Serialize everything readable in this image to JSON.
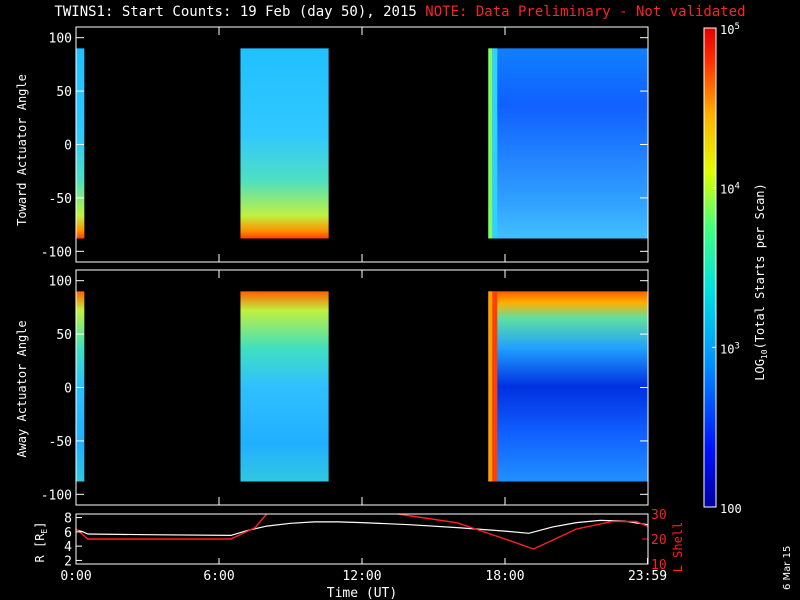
{
  "title": {
    "main": "TWINS1: Start Counts: 19 Feb (day  50), 2015",
    "note": "NOTE: Data Preliminary - Not validated"
  },
  "date_stamp": "6 Mar 15",
  "colors": {
    "background": "#000000",
    "axis": "#ffffff",
    "r_line": "#ffffff",
    "l_line": "#ff2020",
    "note_text": "#ff2222"
  },
  "chart_data": [
    {
      "type": "heatmap",
      "name": "toward-panel",
      "ylabel": "Toward Actuator Angle",
      "ylim": [
        -110,
        110
      ],
      "yticks": [
        -100,
        -50,
        0,
        50,
        100
      ],
      "xlim": [
        0,
        24
      ],
      "xticks": [
        0,
        6,
        12,
        18,
        24
      ],
      "data_intervals_hours": [
        [
          0.0,
          0.35
        ],
        [
          6.9,
          10.6
        ],
        [
          17.3,
          24.0
        ]
      ],
      "data_angle_range": [
        -88,
        90
      ],
      "note": "log color scale, mostly 10^3 to 10^4 counts"
    },
    {
      "type": "heatmap",
      "name": "away-panel",
      "ylabel": "Away Actuator Angle",
      "ylim": [
        -110,
        110
      ],
      "yticks": [
        -100,
        -50,
        0,
        50,
        100
      ],
      "xlim": [
        0,
        24
      ],
      "xticks": [
        0,
        6,
        12,
        18,
        24
      ],
      "data_intervals_hours": [
        [
          0.0,
          0.35
        ],
        [
          6.9,
          10.6
        ],
        [
          17.3,
          24.0
        ]
      ],
      "data_angle_range": [
        -88,
        90
      ]
    },
    {
      "type": "line",
      "name": "orbit-panel",
      "xlabel": "Time (UT)",
      "xtick_labels": [
        "0:00",
        "6:00",
        "12:00",
        "18:00",
        "23:59"
      ],
      "xticks": [
        0,
        6,
        12,
        18,
        23.98
      ],
      "xlim": [
        0,
        24
      ],
      "ylabel_left": "R [R",
      "ylabel_left_sub": "E",
      "ylabel_left_close": "]",
      "ylim_left": [
        1.5,
        8.5
      ],
      "yticks_left": [
        2,
        4,
        6,
        8
      ],
      "ylabel_right": "L Shell",
      "ylim_right": [
        10,
        30
      ],
      "yticks_right": [
        10,
        20,
        30
      ],
      "series": [
        {
          "axis": "left",
          "x": [
            0,
            0.3,
            0.5,
            3,
            6.5,
            7.2,
            8,
            9,
            10,
            11,
            12,
            14,
            16,
            18,
            19,
            20,
            21,
            22,
            23,
            24
          ],
          "values": [
            6.3,
            6.0,
            5.7,
            5.6,
            5.5,
            6.2,
            6.8,
            7.2,
            7.4,
            7.4,
            7.3,
            7.0,
            6.6,
            6.1,
            5.8,
            6.7,
            7.3,
            7.6,
            7.5,
            7.0
          ]
        },
        {
          "axis": "right",
          "segments": [
            {
              "x": [
                0,
                0.5,
                2,
                6.5,
                7.5,
                8.0
              ],
              "values": [
                24,
                20,
                20,
                20,
                24.5,
                30
              ]
            },
            {
              "x": [
                13.5,
                16,
                18,
                19.2,
                21,
                22.5,
                23.5,
                24
              ],
              "values": [
                30,
                26.5,
                20,
                16,
                24,
                27,
                27,
                25
              ]
            }
          ]
        }
      ]
    },
    {
      "type": "heatmap",
      "name": "colorbar",
      "ylabel_prefix": "LOG",
      "ylabel_sub": "10",
      "ylabel_rest": "(Total Starts per Scan)",
      "range": [
        100,
        100000
      ],
      "log": true,
      "tick_labels": [
        {
          "base": "10",
          "exp": "5",
          "value": 100000
        },
        {
          "base": "10",
          "exp": "4",
          "value": 10000
        },
        {
          "base": "10",
          "exp": "3",
          "value": 1000
        },
        {
          "base": "100",
          "exp": "",
          "value": 100
        }
      ]
    }
  ]
}
